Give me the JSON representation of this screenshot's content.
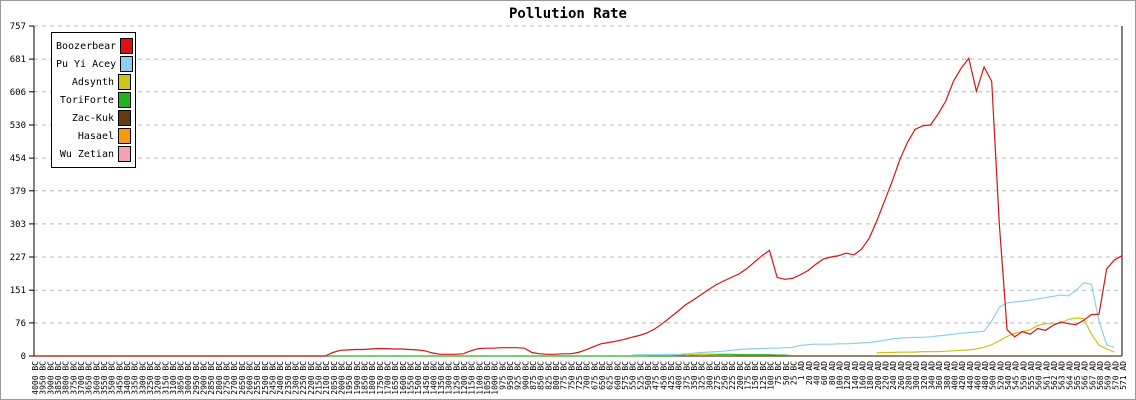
{
  "chart_data": {
    "type": "line",
    "title": "Pollution Rate",
    "xlabel": "",
    "ylabel": "",
    "ylim": [
      0,
      757
    ],
    "y_ticks": [
      0,
      76,
      151,
      227,
      303,
      379,
      454,
      530,
      606,
      681,
      757
    ],
    "grid": "horizontal-dashed",
    "legend_position": "top-left",
    "x_labels": [
      "4000 BC",
      "3950 BC",
      "3900 BC",
      "3850 BC",
      "3800 BC",
      "3750 BC",
      "3700 BC",
      "3650 BC",
      "3600 BC",
      "3550 BC",
      "3500 BC",
      "3450 BC",
      "3400 BC",
      "3350 BC",
      "3300 BC",
      "3250 BC",
      "3200 BC",
      "3150 BC",
      "3100 BC",
      "3050 BC",
      "3000 BC",
      "2950 BC",
      "2900 BC",
      "2850 BC",
      "2800 BC",
      "2750 BC",
      "2700 BC",
      "2650 BC",
      "2600 BC",
      "2550 BC",
      "2500 BC",
      "2450 BC",
      "2400 BC",
      "2350 BC",
      "2300 BC",
      "2250 BC",
      "2200 BC",
      "2150 BC",
      "2100 BC",
      "2050 BC",
      "2000 BC",
      "1950 BC",
      "1900 BC",
      "1850 BC",
      "1800 BC",
      "1750 BC",
      "1700 BC",
      "1650 BC",
      "1600 BC",
      "1550 BC",
      "1500 BC",
      "1450 BC",
      "1400 BC",
      "1350 BC",
      "1300 BC",
      "1250 BC",
      "1200 BC",
      "1150 BC",
      "1100 BC",
      "1050 BC",
      "1000 BC",
      "975 BC",
      "950 BC",
      "925 BC",
      "900 BC",
      "875 BC",
      "850 BC",
      "825 BC",
      "800 BC",
      "775 BC",
      "750 BC",
      "725 BC",
      "700 BC",
      "675 BC",
      "650 BC",
      "625 BC",
      "600 BC",
      "575 BC",
      "550 BC",
      "525 BC",
      "500 BC",
      "475 BC",
      "450 BC",
      "425 BC",
      "400 BC",
      "375 BC",
      "350 BC",
      "325 BC",
      "300 BC",
      "275 BC",
      "250 BC",
      "225 BC",
      "200 BC",
      "175 BC",
      "150 BC",
      "125 BC",
      "100 BC",
      "75 BC",
      "50 BC",
      "25 BC",
      "1 AD",
      "20 AD",
      "40 AD",
      "60 AD",
      "80 AD",
      "100 AD",
      "120 AD",
      "140 AD",
      "160 AD",
      "180 AD",
      "200 AD",
      "220 AD",
      "240 AD",
      "260 AD",
      "280 AD",
      "300 AD",
      "320 AD",
      "340 AD",
      "360 AD",
      "380 AD",
      "400 AD",
      "420 AD",
      "440 AD",
      "460 AD",
      "480 AD",
      "500 AD",
      "520 AD",
      "540 AD",
      "545 AD",
      "550 AD",
      "555 AD",
      "560 AD",
      "561 AD",
      "562 AD",
      "563 AD",
      "564 AD",
      "565 AD",
      "566 AD",
      "567 AD",
      "568 AD",
      "569 AD",
      "570 AD",
      "571 AD"
    ],
    "series": [
      {
        "name": "Boozerbear",
        "color": "#dd1111",
        "values": [
          0,
          0,
          0,
          0,
          0,
          0,
          0,
          0,
          0,
          0,
          0,
          0,
          0,
          0,
          0,
          0,
          0,
          0,
          0,
          0,
          0,
          0,
          0,
          0,
          0,
          0,
          0,
          0,
          0,
          0,
          0,
          0,
          0,
          0,
          0,
          0,
          0,
          0,
          0,
          8,
          13,
          14,
          15,
          15,
          16,
          17,
          17,
          16,
          16,
          15,
          14,
          12,
          7,
          4,
          4,
          4,
          5,
          12,
          17,
          18,
          18,
          19,
          19,
          19,
          18,
          8,
          5,
          4,
          4,
          5,
          5,
          8,
          14,
          21,
          28,
          31,
          34,
          38,
          43,
          47,
          53,
          62,
          74,
          88,
          102,
          117,
          128,
          140,
          152,
          163,
          172,
          180,
          188,
          200,
          215,
          230,
          242,
          180,
          176,
          178,
          186,
          196,
          210,
          222,
          227,
          230,
          236,
          232,
          245,
          270,
          310,
          355,
          400,
          450,
          490,
          520,
          528,
          530,
          555,
          585,
          630,
          660,
          683,
          607,
          663,
          630,
          300,
          60,
          44,
          56,
          50,
          63,
          59,
          70,
          78,
          74,
          72,
          82,
          95,
          96,
          200,
          220,
          230
        ]
      },
      {
        "name": "Pu Yi Acey",
        "color": "#8cd0f0",
        "values": [
          null,
          null,
          null,
          null,
          null,
          null,
          null,
          null,
          null,
          null,
          null,
          null,
          null,
          null,
          null,
          null,
          null,
          null,
          null,
          null,
          null,
          null,
          null,
          null,
          null,
          null,
          null,
          null,
          null,
          null,
          null,
          null,
          null,
          null,
          null,
          null,
          null,
          null,
          null,
          null,
          null,
          null,
          null,
          null,
          null,
          null,
          null,
          null,
          null,
          null,
          null,
          null,
          null,
          null,
          null,
          null,
          null,
          null,
          null,
          null,
          null,
          null,
          null,
          null,
          null,
          null,
          null,
          null,
          null,
          null,
          null,
          null,
          null,
          null,
          null,
          null,
          null,
          null,
          2,
          3,
          3,
          3,
          3,
          4,
          4,
          5,
          6,
          8,
          9,
          10,
          11,
          13,
          15,
          16,
          17,
          17,
          18,
          18,
          19,
          20,
          24,
          26,
          27,
          27,
          27,
          28,
          28,
          29,
          30,
          31,
          33,
          36,
          39,
          41,
          42,
          43,
          43,
          44,
          46,
          48,
          50,
          52,
          54,
          55,
          57,
          80,
          112,
          122,
          124,
          126,
          128,
          131,
          134,
          137,
          140,
          138,
          150,
          168,
          165,
          80,
          26,
          20,
          null
        ]
      },
      {
        "name": "Adsynth",
        "color": "#cbc618",
        "values": [
          null,
          null,
          null,
          null,
          null,
          null,
          null,
          null,
          null,
          null,
          null,
          null,
          null,
          null,
          null,
          null,
          null,
          null,
          null,
          null,
          null,
          null,
          null,
          null,
          null,
          null,
          null,
          null,
          null,
          null,
          null,
          null,
          null,
          null,
          null,
          null,
          null,
          null,
          null,
          null,
          null,
          null,
          null,
          null,
          null,
          null,
          null,
          null,
          null,
          null,
          null,
          null,
          null,
          null,
          null,
          null,
          null,
          null,
          null,
          null,
          null,
          null,
          null,
          null,
          null,
          null,
          null,
          null,
          null,
          null,
          null,
          null,
          null,
          null,
          null,
          null,
          null,
          null,
          null,
          null,
          null,
          null,
          null,
          null,
          null,
          2,
          3,
          4,
          3,
          2,
          null,
          null,
          null,
          null,
          null,
          null,
          null,
          null,
          null,
          null,
          null,
          null,
          null,
          null,
          null,
          null,
          null,
          null,
          null,
          null,
          7,
          8,
          8,
          9,
          9,
          9,
          10,
          10,
          10,
          11,
          12,
          13,
          14,
          16,
          20,
          26,
          35,
          45,
          52,
          56,
          60,
          70,
          74,
          74,
          75,
          84,
          87,
          86,
          50,
          25,
          16,
          9,
          null
        ]
      },
      {
        "name": "ToriForte",
        "color": "#1eb81e",
        "values": [
          0,
          0,
          0,
          0,
          0,
          0,
          0,
          0,
          0,
          0,
          0,
          0,
          0,
          0,
          0,
          0,
          0,
          0,
          0,
          0,
          0,
          0,
          0,
          0,
          0,
          0,
          0,
          0,
          0,
          0,
          0,
          0,
          0,
          0,
          0,
          0,
          0,
          0,
          0,
          0,
          0,
          0,
          0,
          0,
          0,
          0,
          0,
          0,
          0,
          0,
          0,
          0,
          0,
          0,
          0,
          0,
          0,
          0,
          0,
          0,
          0,
          0,
          0,
          0,
          0,
          0,
          0,
          0,
          0,
          0,
          0,
          0,
          0,
          0,
          0,
          0,
          0,
          0,
          0,
          0,
          0,
          0,
          0,
          0,
          1,
          2,
          3,
          4,
          4,
          4,
          4,
          4,
          3,
          3,
          3,
          3,
          3,
          2,
          2,
          1,
          null,
          null,
          null,
          null,
          null,
          null,
          null,
          null,
          null,
          null,
          null,
          null,
          null,
          null,
          null,
          null,
          null,
          null,
          null,
          null,
          null,
          null,
          null,
          null,
          null,
          null,
          null,
          null,
          null,
          null,
          null,
          null,
          null,
          null,
          null,
          null,
          null,
          null,
          null,
          null,
          null,
          null,
          null
        ]
      },
      {
        "name": "Zac-Kuk",
        "color": "#5f3b16",
        "values": [
          null,
          null,
          null,
          null,
          null,
          null,
          null,
          null,
          null,
          null,
          null,
          null,
          null,
          null,
          null,
          null,
          null,
          null,
          null,
          null,
          null,
          null,
          null,
          null,
          null,
          null,
          null,
          null,
          null,
          null,
          null,
          null,
          null,
          null,
          null,
          null,
          null,
          null,
          null,
          null,
          null,
          null,
          null,
          null,
          null,
          null,
          null,
          null,
          null,
          null,
          null,
          null,
          null,
          null,
          null,
          null,
          null,
          null,
          null,
          null,
          null,
          null,
          null,
          null,
          null,
          null,
          null,
          null,
          null,
          null,
          null,
          null,
          null,
          null,
          null,
          null,
          null,
          null,
          null,
          null,
          0,
          0,
          0,
          0,
          0,
          0,
          0,
          0,
          0,
          0,
          0,
          0,
          0,
          0,
          0,
          0,
          0,
          0,
          0,
          0,
          0,
          0,
          0,
          0,
          0,
          0,
          0,
          0,
          0,
          0,
          0,
          0,
          0,
          0,
          0,
          0,
          0,
          0,
          0,
          0,
          0,
          0,
          0,
          0,
          0,
          0,
          0,
          0,
          0,
          0,
          0,
          0,
          0,
          0,
          0,
          0,
          0,
          0,
          0,
          0,
          0,
          0,
          0
        ]
      },
      {
        "name": "Hasael",
        "color": "#f59b0e",
        "values": []
      },
      {
        "name": "Wu Zetian",
        "color": "#f2a3b3",
        "values": []
      }
    ]
  }
}
